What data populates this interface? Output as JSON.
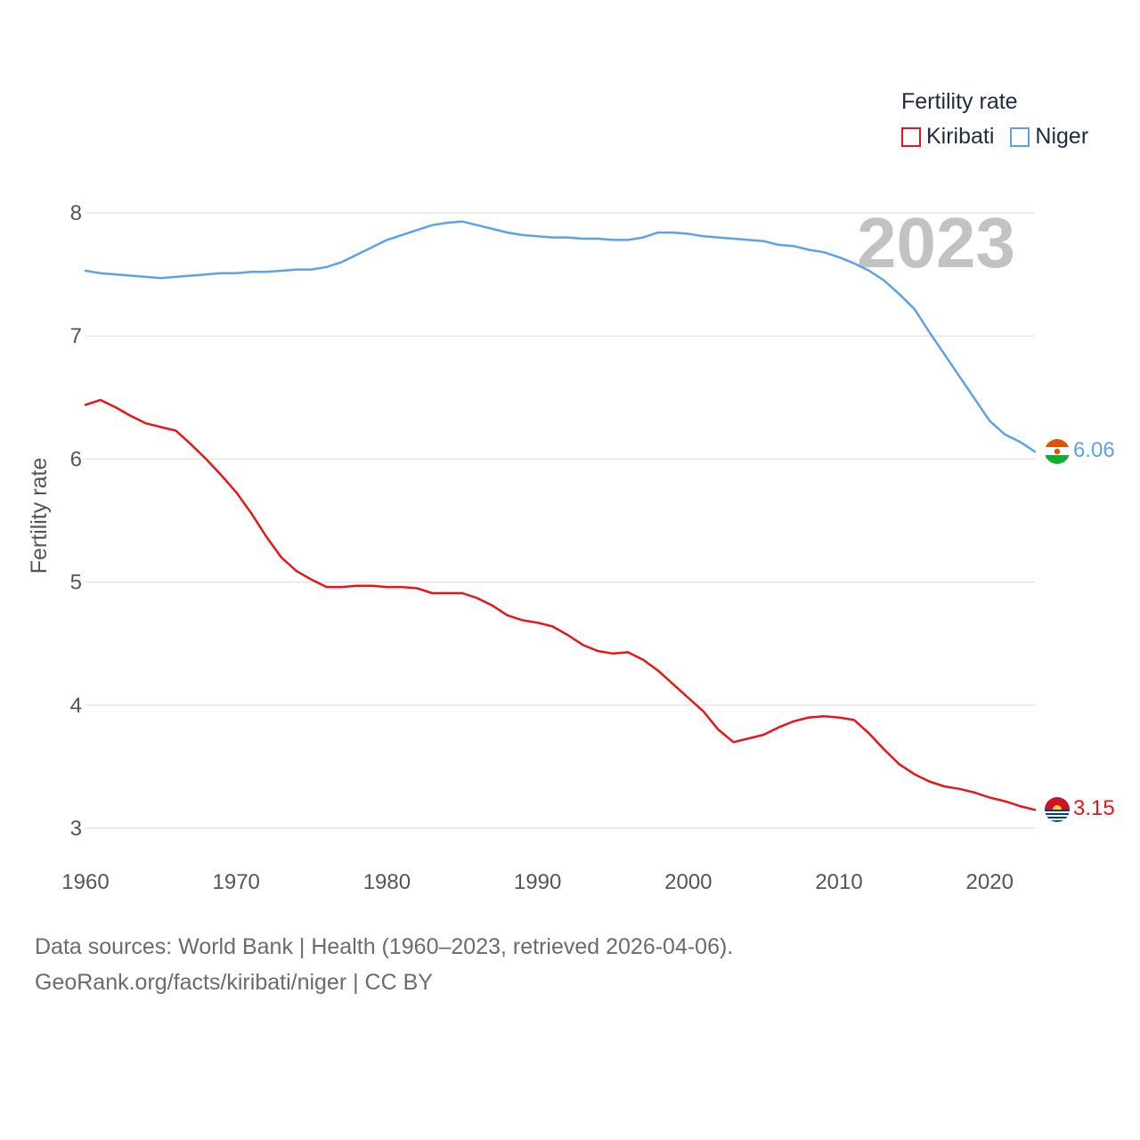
{
  "chart_data": {
    "type": "line",
    "title": "",
    "year_label": "2023",
    "xlabel": "",
    "ylabel": "Fertility rate",
    "xlim": [
      1960,
      2023
    ],
    "ylim": [
      3,
      8
    ],
    "x_ticks": [
      "1960",
      "1970",
      "1980",
      "1990",
      "2000",
      "2010",
      "2020"
    ],
    "y_ticks": [
      "3",
      "4",
      "5",
      "6",
      "7",
      "8"
    ],
    "grid": true,
    "legend": {
      "title": "Fertility rate",
      "placement": "top-right"
    },
    "x": [
      1960,
      1961,
      1962,
      1963,
      1964,
      1965,
      1966,
      1967,
      1968,
      1969,
      1970,
      1971,
      1972,
      1973,
      1974,
      1975,
      1976,
      1977,
      1978,
      1979,
      1980,
      1981,
      1982,
      1983,
      1984,
      1985,
      1986,
      1987,
      1988,
      1989,
      1990,
      1991,
      1992,
      1993,
      1994,
      1995,
      1996,
      1997,
      1998,
      1999,
      2000,
      2001,
      2002,
      2003,
      2004,
      2005,
      2006,
      2007,
      2008,
      2009,
      2010,
      2011,
      2012,
      2013,
      2014,
      2015,
      2016,
      2017,
      2018,
      2019,
      2020,
      2021,
      2022,
      2023
    ],
    "series": [
      {
        "name": "Kiribati",
        "color": "#e8161a",
        "end_label": "3.15",
        "values": [
          6.44,
          6.48,
          6.42,
          6.35,
          6.29,
          6.26,
          6.23,
          6.12,
          6.0,
          5.87,
          5.73,
          5.56,
          5.37,
          5.2,
          5.09,
          5.02,
          4.96,
          4.96,
          4.97,
          4.97,
          4.96,
          4.96,
          4.95,
          4.91,
          4.91,
          4.91,
          4.87,
          4.81,
          4.73,
          4.69,
          4.67,
          4.64,
          4.57,
          4.49,
          4.44,
          4.42,
          4.43,
          4.37,
          4.28,
          4.17,
          4.06,
          3.95,
          3.8,
          3.7,
          3.73,
          3.76,
          3.82,
          3.87,
          3.9,
          3.91,
          3.9,
          3.88,
          3.77,
          3.64,
          3.52,
          3.44,
          3.38,
          3.34,
          3.32,
          3.29,
          3.25,
          3.22,
          3.18,
          3.15
        ]
      },
      {
        "name": "Niger",
        "color": "#5ba3e6",
        "end_label": "6.06",
        "values": [
          7.53,
          7.51,
          7.5,
          7.49,
          7.48,
          7.47,
          7.48,
          7.49,
          7.5,
          7.51,
          7.51,
          7.52,
          7.52,
          7.53,
          7.54,
          7.54,
          7.56,
          7.6,
          7.66,
          7.72,
          7.78,
          7.82,
          7.86,
          7.9,
          7.92,
          7.93,
          7.9,
          7.87,
          7.84,
          7.82,
          7.81,
          7.8,
          7.8,
          7.79,
          7.79,
          7.78,
          7.78,
          7.8,
          7.84,
          7.84,
          7.83,
          7.81,
          7.8,
          7.79,
          7.78,
          7.77,
          7.74,
          7.73,
          7.7,
          7.68,
          7.64,
          7.59,
          7.53,
          7.45,
          7.34,
          7.22,
          7.03,
          6.85,
          6.67,
          6.49,
          6.31,
          6.2,
          6.14,
          6.06
        ]
      }
    ]
  },
  "footer": {
    "line1": "Data sources: World Bank | Health (1960–2023, retrieved 2026-04-06).",
    "line2": "GeoRank.org/facts/kiribati/niger | CC BY"
  }
}
